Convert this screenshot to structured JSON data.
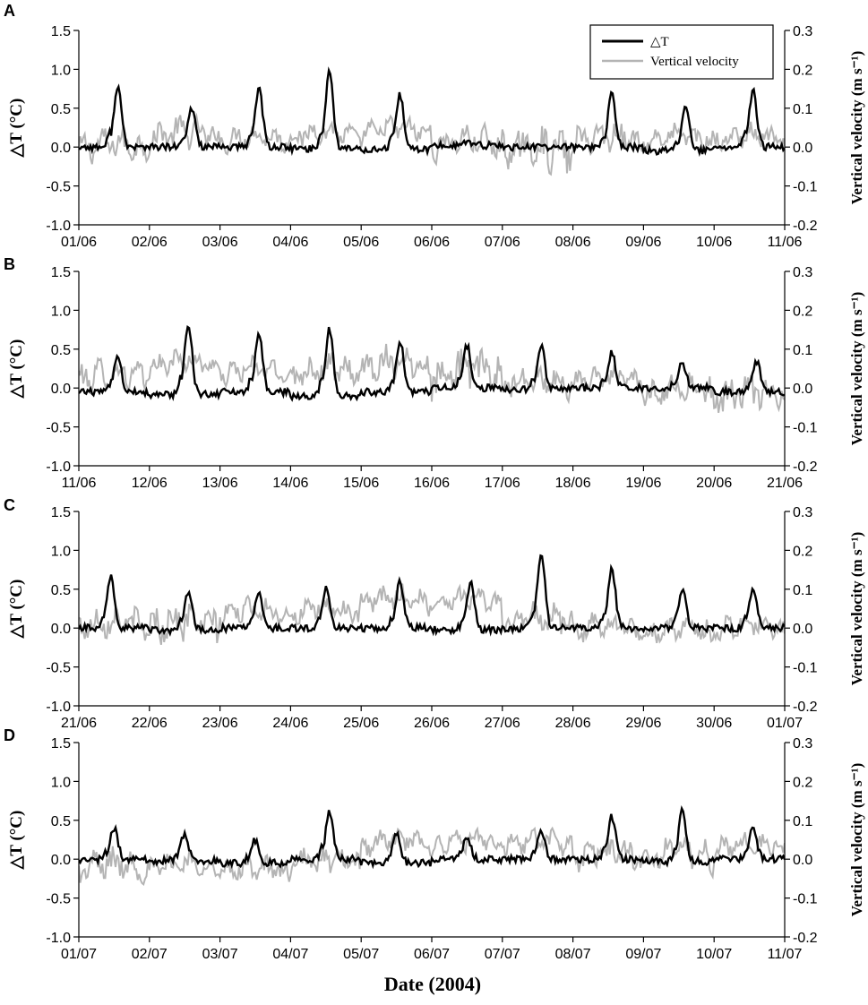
{
  "figure": {
    "x_title": "Date (2004)",
    "legend": [
      {
        "label": "△T",
        "color": "#000000"
      },
      {
        "label": "Vertical velocity",
        "color": "#b4b4b4"
      }
    ]
  },
  "chart_data": [
    {
      "panel": "A",
      "type": "line",
      "xlabel": "",
      "ylabel": "△T (°C)",
      "y2label": "Vertical velocity (m s⁻¹)",
      "ylim": [
        -1.0,
        1.5
      ],
      "y2lim": [
        -0.2,
        0.3
      ],
      "yticks": [
        "-1.0",
        "-0.5",
        "0.0",
        "0.5",
        "1.0",
        "1.5"
      ],
      "y2ticks": [
        "-0.2",
        "-0.1",
        "0.0",
        "0.1",
        "0.2",
        "0.3"
      ],
      "x_ticks": [
        "01/06",
        "02/06",
        "03/06",
        "04/06",
        "05/06",
        "06/06",
        "07/06",
        "08/06",
        "09/06",
        "10/06",
        "11/06"
      ],
      "legend": "top-right",
      "series": [
        {
          "name": "△T",
          "axis": "left",
          "color": "#000000",
          "daily_peak": [
            0.78,
            0.5,
            0.75,
            1.0,
            0.7,
            0.05,
            0.0,
            0.67,
            0.6,
            0.72
          ],
          "peak_time": [
            0.55,
            0.6,
            0.55,
            0.55,
            0.55,
            0.5,
            0.5,
            0.55,
            0.6,
            0.55
          ],
          "baseline": [
            0.0,
            0.0,
            0.0,
            -0.02,
            -0.03,
            0.02,
            0.0,
            0.0,
            -0.05,
            0.0
          ]
        },
        {
          "name": "Vertical velocity",
          "axis": "right",
          "color": "#b4b4b4",
          "daily_mean": [
            -0.01,
            0.02,
            0.01,
            0.02,
            0.03,
            0.0,
            -0.02,
            0.01,
            0.01,
            0.01
          ],
          "amplitude": [
            0.04,
            0.04,
            0.03,
            0.03,
            0.03,
            0.04,
            0.06,
            0.04,
            0.03,
            0.03
          ]
        }
      ]
    },
    {
      "panel": "B",
      "type": "line",
      "xlabel": "",
      "ylabel": "△T (°C)",
      "y2label": "Vertical velocity (m s⁻¹)",
      "ylim": [
        -1.0,
        1.5
      ],
      "y2lim": [
        -0.2,
        0.3
      ],
      "yticks": [
        "-1.0",
        "-0.5",
        "0.0",
        "0.5",
        "1.0",
        "1.5"
      ],
      "y2ticks": [
        "-0.2",
        "-0.1",
        "0.0",
        "0.1",
        "0.2",
        "0.3"
      ],
      "x_ticks": [
        "11/06",
        "12/06",
        "13/06",
        "14/06",
        "15/06",
        "16/06",
        "17/06",
        "18/06",
        "19/06",
        "20/06",
        "21/06"
      ],
      "series": [
        {
          "name": "△T",
          "axis": "left",
          "color": "#000000",
          "daily_peak": [
            0.45,
            0.92,
            0.75,
            0.87,
            0.65,
            0.55,
            0.55,
            0.45,
            0.32,
            0.4
          ],
          "peak_time": [
            0.55,
            0.55,
            0.55,
            0.55,
            0.55,
            0.5,
            0.55,
            0.55,
            0.55,
            0.6
          ],
          "baseline": [
            -0.05,
            -0.08,
            -0.05,
            -0.1,
            -0.05,
            0.0,
            -0.02,
            0.0,
            0.0,
            -0.05
          ]
        },
        {
          "name": "Vertical velocity",
          "axis": "right",
          "color": "#b4b4b4",
          "daily_mean": [
            0.02,
            0.05,
            0.03,
            0.03,
            0.05,
            0.03,
            0.0,
            0.01,
            -0.02,
            -0.03
          ],
          "amplitude": [
            0.04,
            0.03,
            0.03,
            0.04,
            0.04,
            0.06,
            0.04,
            0.03,
            0.04,
            0.05
          ]
        }
      ]
    },
    {
      "panel": "C",
      "type": "line",
      "xlabel": "",
      "ylabel": "△T (°C)",
      "y2label": "Vertical velocity (m s⁻¹)",
      "ylim": [
        -1.0,
        1.5
      ],
      "y2lim": [
        -0.2,
        0.3
      ],
      "yticks": [
        "-1.0",
        "-0.5",
        "0.0",
        "0.5",
        "1.0",
        "1.5"
      ],
      "y2ticks": [
        "-0.2",
        "-0.1",
        "0.0",
        "0.1",
        "0.2",
        "0.3"
      ],
      "x_ticks": [
        "21/06",
        "22/06",
        "23/06",
        "24/06",
        "25/06",
        "26/06",
        "27/06",
        "28/06",
        "29/06",
        "30/06",
        "01/07"
      ],
      "series": [
        {
          "name": "△T",
          "axis": "left",
          "color": "#000000",
          "daily_peak": [
            0.65,
            0.5,
            0.45,
            0.5,
            0.6,
            0.6,
            0.98,
            0.75,
            0.5,
            0.5
          ],
          "peak_time": [
            0.45,
            0.55,
            0.55,
            0.5,
            0.55,
            0.55,
            0.55,
            0.55,
            0.55,
            0.55
          ],
          "baseline": [
            0.0,
            -0.03,
            0.0,
            0.0,
            0.0,
            -0.02,
            0.0,
            0.0,
            0.0,
            0.0
          ]
        },
        {
          "name": "Vertical velocity",
          "axis": "right",
          "color": "#b4b4b4",
          "daily_mean": [
            0.0,
            0.0,
            0.03,
            0.03,
            0.06,
            0.06,
            0.01,
            -0.01,
            -0.02,
            -0.01
          ],
          "amplitude": [
            0.04,
            0.05,
            0.03,
            0.03,
            0.03,
            0.03,
            0.04,
            0.03,
            0.03,
            0.03
          ]
        }
      ]
    },
    {
      "panel": "D",
      "type": "line",
      "xlabel": "Date (2004)",
      "ylabel": "△T (°C)",
      "y2label": "Vertical velocity (m s⁻¹)",
      "ylim": [
        -1.0,
        1.5
      ],
      "y2lim": [
        -0.2,
        0.3
      ],
      "yticks": [
        "-1.0",
        "-0.5",
        "0.0",
        "0.5",
        "1.0",
        "1.5"
      ],
      "y2ticks": [
        "-0.2",
        "-0.1",
        "0.0",
        "0.1",
        "0.2",
        "0.3"
      ],
      "x_ticks": [
        "01/07",
        "02/07",
        "03/07",
        "04/07",
        "05/07",
        "06/07",
        "07/07",
        "08/07",
        "09/07",
        "10/07",
        "11/07"
      ],
      "series": [
        {
          "name": "△T",
          "axis": "left",
          "color": "#000000",
          "daily_peak": [
            0.4,
            0.35,
            0.3,
            0.6,
            0.4,
            0.3,
            0.35,
            0.55,
            0.65,
            0.4
          ],
          "peak_time": [
            0.5,
            0.5,
            0.5,
            0.55,
            0.5,
            0.5,
            0.55,
            0.55,
            0.55,
            0.55
          ],
          "baseline": [
            0.0,
            -0.02,
            -0.05,
            0.0,
            -0.05,
            0.0,
            0.0,
            0.0,
            -0.03,
            0.0
          ]
        },
        {
          "name": "Vertical velocity",
          "axis": "right",
          "color": "#b4b4b4",
          "daily_mean": [
            -0.03,
            -0.03,
            -0.04,
            -0.02,
            0.03,
            0.03,
            0.03,
            0.0,
            0.0,
            0.02
          ],
          "amplitude": [
            0.04,
            0.03,
            0.03,
            0.04,
            0.03,
            0.03,
            0.03,
            0.04,
            0.04,
            0.03
          ]
        }
      ]
    }
  ]
}
